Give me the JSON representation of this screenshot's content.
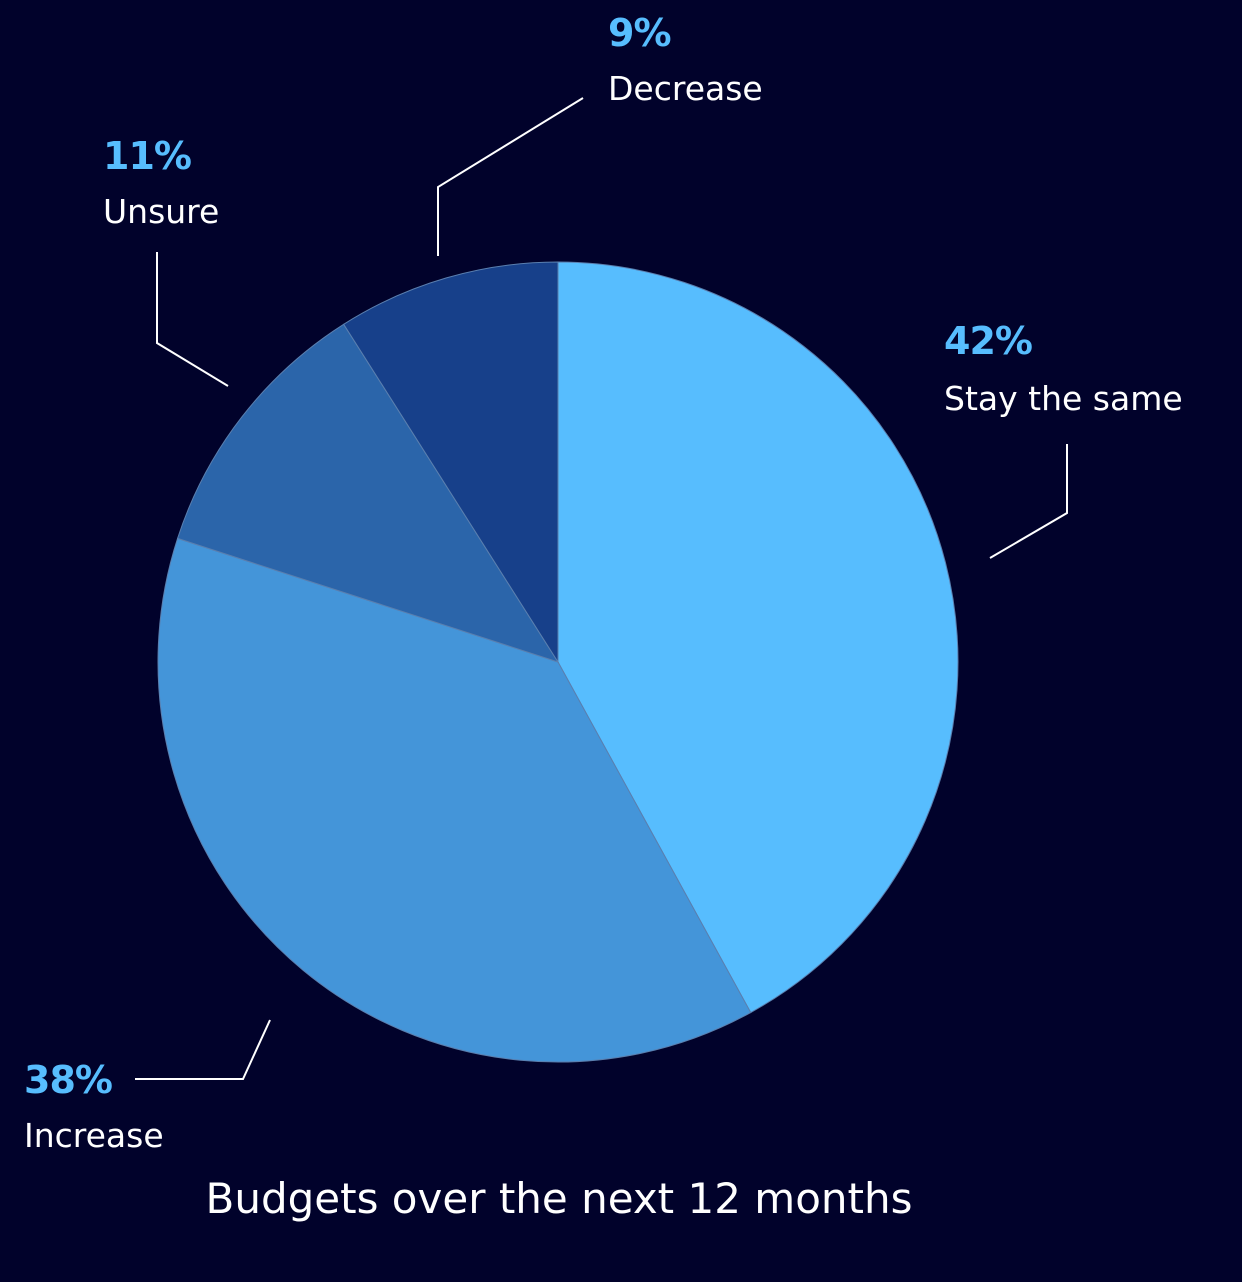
{
  "chart_data": {
    "type": "pie",
    "title": "Budgets over the next 12 months",
    "slices": [
      {
        "label": "Stay the same",
        "value": 42,
        "value_label": "42%",
        "color": "#57bdfe"
      },
      {
        "label": "Increase",
        "value": 38,
        "value_label": "38%",
        "color": "#4495d9"
      },
      {
        "label": "Unsure",
        "value": 11,
        "value_label": "11%",
        "color": "#2b65aa"
      },
      {
        "label": "Decrease",
        "value": 9,
        "value_label": "9%",
        "color": "#17408a"
      }
    ],
    "start": "12 o'clock",
    "direction": "clockwise",
    "legend": "none",
    "colors": {
      "background": "#01022b",
      "value_label": "#57bdfe",
      "category_label": "#ffffff",
      "leader_line": "#ffffff"
    }
  }
}
